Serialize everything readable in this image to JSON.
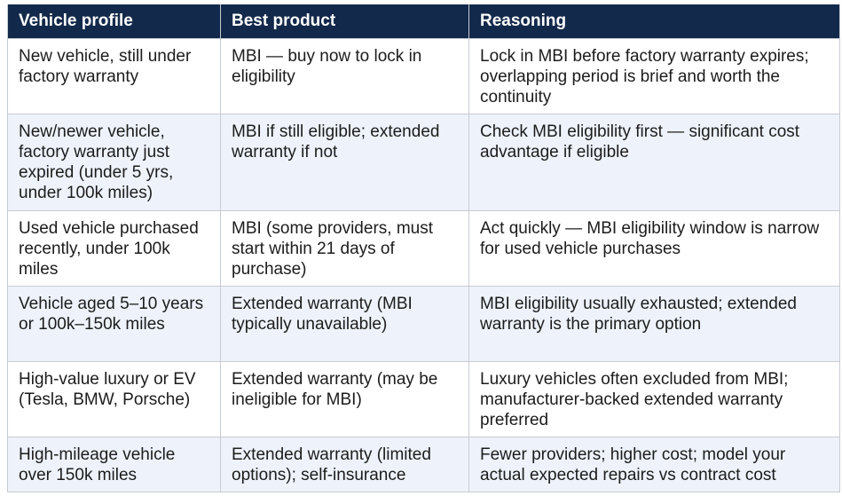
{
  "table": {
    "headers": [
      "Vehicle profile",
      "Best product",
      "Reasoning"
    ],
    "rows": [
      [
        "New vehicle, still under factory warranty",
        "MBI — buy now to lock in eligibility",
        "Lock in MBI before factory warranty expires; overlapping period is brief and worth the continuity"
      ],
      [
        "New/newer vehicle, factory warranty just expired (under 5 yrs, under 100k miles)",
        "MBI if still eligible; extended warranty if not",
        "Check MBI eligibility first — significant cost advantage if eligible"
      ],
      [
        "Used vehicle purchased recently, under 100k miles",
        "MBI (some providers, must start within 21 days of purchase)",
        "Act quickly — MBI eligibility window is narrow for used vehicle purchases"
      ],
      [
        "Vehicle aged 5–10 years or 100k–150k miles",
        "Extended warranty (MBI typically unavailable)",
        "MBI eligibility usually exhausted; extended warranty is the primary option"
      ],
      [
        "High-value luxury or EV (Tesla, BMW, Porsche)",
        "Extended warranty (may be ineligible for MBI)",
        "Luxury vehicles often excluded from MBI; manufacturer-backed extended warranty preferred"
      ],
      [
        "High-mileage vehicle over 150k miles",
        "Extended warranty (limited options); self-insurance",
        "Fewer providers; higher cost; model your actual expected repairs vs contract cost"
      ]
    ]
  },
  "colors": {
    "header_bg": "#13294b",
    "header_text": "#ffffff",
    "row_alt_bg": "#eef3fb",
    "border": "#c7ccd3"
  }
}
